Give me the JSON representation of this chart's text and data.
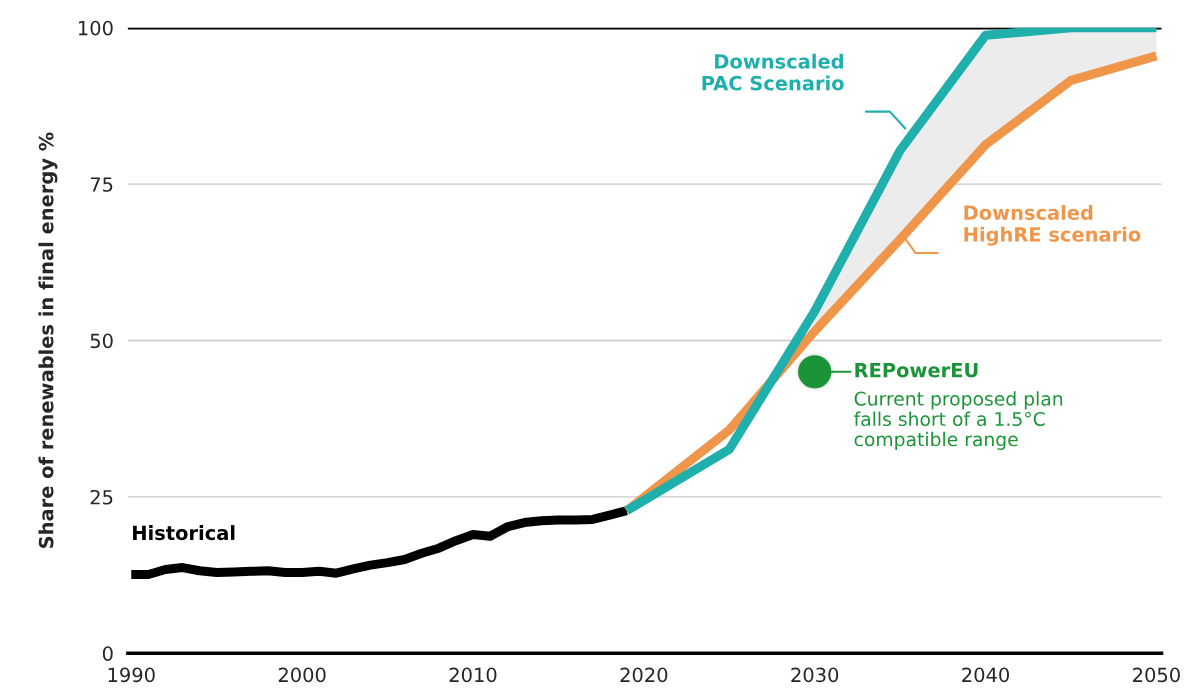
{
  "chart_data": {
    "type": "line",
    "ylabel": "Share of renewables in final energy %",
    "xlim": [
      1989.8,
      2050.3
    ],
    "xticks": [
      1990,
      2000,
      2010,
      2020,
      2030,
      2040,
      2050
    ],
    "ylim": [
      0,
      100
    ],
    "yticks": [
      0,
      25,
      50,
      75,
      100
    ],
    "grid": "y",
    "ref_lines": [
      {
        "axis": "y",
        "value": 100,
        "color": "#000000"
      }
    ],
    "series": [
      {
        "name": "Historical",
        "color": "#000000",
        "x": [
          1990,
          1991,
          1992,
          1993,
          1994,
          1995,
          1996,
          1997,
          1998,
          1999,
          2000,
          2001,
          2002,
          2003,
          2004,
          2005,
          2006,
          2007,
          2008,
          2009,
          2010,
          2011,
          2012,
          2013,
          2014,
          2015,
          2016,
          2017,
          2018,
          2019
        ],
        "values": [
          12.6,
          12.6,
          13.4,
          13.7,
          13.2,
          12.9,
          13.0,
          13.1,
          13.2,
          12.9,
          12.9,
          13.1,
          12.8,
          13.5,
          14.1,
          14.5,
          15.0,
          16.0,
          16.8,
          18.0,
          19.0,
          18.7,
          20.2,
          20.9,
          21.2,
          21.3,
          21.3,
          21.4,
          22.1,
          22.8
        ]
      },
      {
        "name": "Downscaled\nHighRE scenario",
        "color": "#f0964a",
        "x": [
          2019,
          2025,
          2030,
          2035,
          2040,
          2045,
          2050
        ],
        "values": [
          22.8,
          35.7,
          51.5,
          66.2,
          81.3,
          91.6,
          95.5
        ]
      },
      {
        "name": "Downscaled\nPAC Scenario",
        "color": "#1fb0ae",
        "x": [
          2019,
          2025,
          2030,
          2035,
          2040,
          2045,
          2050
        ],
        "values": [
          22.8,
          32.6,
          54.7,
          80.4,
          98.8,
          100,
          100
        ],
        "lower": [
          null,
          null,
          51.5,
          66.2,
          81.3,
          91.6,
          95.5
        ],
        "upper": [
          null,
          null,
          54.7,
          80.4,
          98.8,
          100,
          100
        ]
      },
      {
        "name": "REPowerEU",
        "type": "scatter",
        "color": "#1b9437",
        "x": [
          2030
        ],
        "values": [
          45.0
        ],
        "marker": "circle"
      }
    ],
    "annotations": [
      "Current proposed plan\nfalls short of a 1.5°C\ncompatible range"
    ]
  }
}
